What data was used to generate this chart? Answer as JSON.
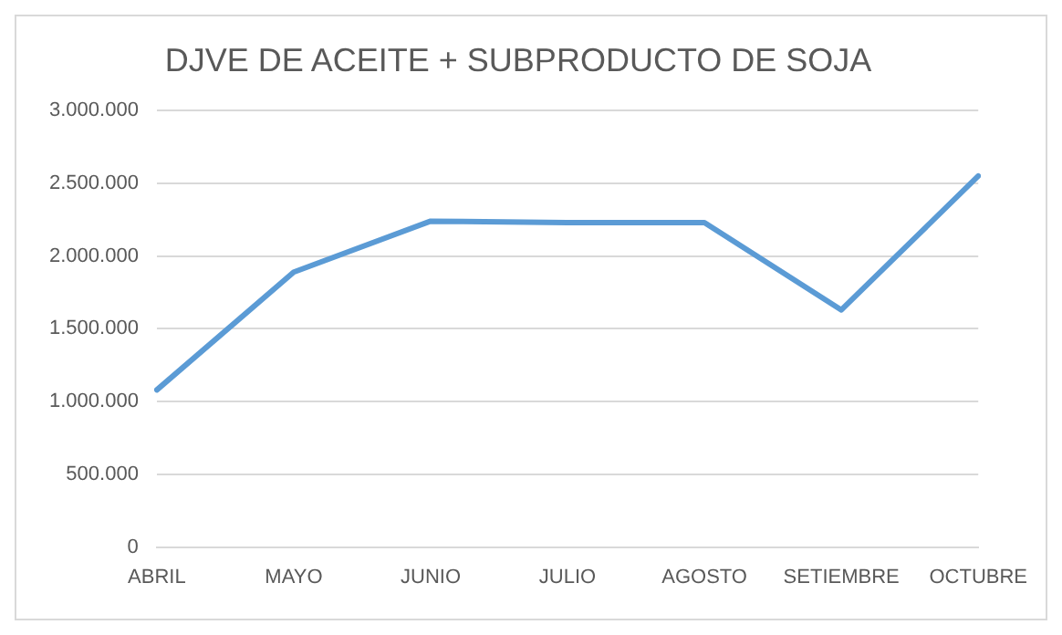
{
  "chart_data": {
    "type": "line",
    "title": "DJVE DE ACEITE + SUBPRODUCTO DE SOJA",
    "categories": [
      "ABRIL",
      "MAYO",
      "JUNIO",
      "JULIO",
      "AGOSTO",
      "SETIEMBRE",
      "OCTUBRE"
    ],
    "series": [
      {
        "color": "#5b9bd5",
        "values": [
          1080000,
          1890000,
          2240000,
          2230000,
          2230000,
          1630000,
          2550000
        ]
      }
    ],
    "ylim": [
      0,
      3000000
    ],
    "yticks": [
      0,
      {
        "value": 500000,
        "label": "500.000"
      },
      {
        "value": 1000000,
        "label": "1.000.000"
      },
      {
        "value": 1500000,
        "label": "1.500.000"
      },
      {
        "value": 2000000,
        "label": "2.000.000"
      },
      {
        "value": 2500000,
        "label": "2.500.000"
      },
      {
        "value": 3000000,
        "label": "3.000.000"
      }
    ],
    "grid": "y",
    "legend": false,
    "marker": "none",
    "line_style": "solid"
  }
}
